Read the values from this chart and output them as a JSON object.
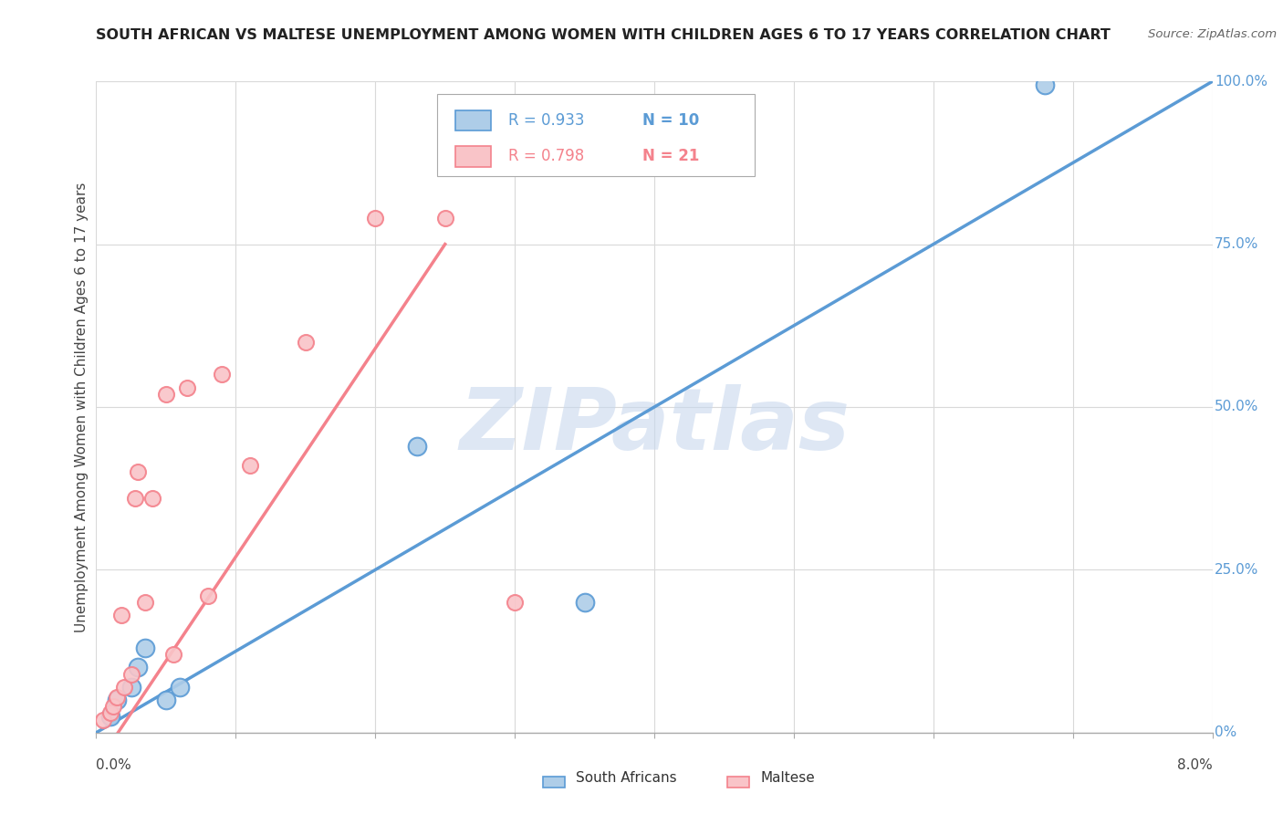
{
  "title": "SOUTH AFRICAN VS MALTESE UNEMPLOYMENT AMONG WOMEN WITH CHILDREN AGES 6 TO 17 YEARS CORRELATION CHART",
  "source": "Source: ZipAtlas.com",
  "ylabel": "Unemployment Among Women with Children Ages 6 to 17 years",
  "x_min": 0.0,
  "x_max": 8.0,
  "y_min": 0.0,
  "y_max": 100.0,
  "legend_entry1_r": "R = 0.933",
  "legend_entry1_n": "N = 10",
  "legend_entry2_r": "R = 0.798",
  "legend_entry2_n": "N = 21",
  "watermark": "ZIPatlas",
  "blue_color": "#5b9bd5",
  "blue_fill": "#aecde8",
  "pink_color": "#f4828c",
  "pink_fill": "#f9c4c8",
  "legend_label1": "South Africans",
  "legend_label2": "Maltese",
  "sa_points_x": [
    0.1,
    0.15,
    0.25,
    0.3,
    0.35,
    0.5,
    0.6,
    2.3,
    3.5,
    6.8
  ],
  "sa_points_y": [
    2.5,
    5.0,
    7.0,
    10.0,
    13.0,
    5.0,
    7.0,
    44.0,
    20.0,
    99.5
  ],
  "maltese_points_x": [
    0.05,
    0.1,
    0.12,
    0.15,
    0.18,
    0.2,
    0.25,
    0.28,
    0.3,
    0.35,
    0.4,
    0.5,
    0.55,
    0.65,
    0.8,
    0.9,
    1.1,
    1.5,
    2.0,
    2.5,
    3.0
  ],
  "maltese_points_y": [
    2.0,
    3.0,
    4.0,
    5.5,
    18.0,
    7.0,
    9.0,
    36.0,
    40.0,
    20.0,
    36.0,
    52.0,
    12.0,
    53.0,
    21.0,
    55.0,
    41.0,
    60.0,
    79.0,
    79.0,
    20.0
  ],
  "sa_line_x": [
    0.0,
    8.0
  ],
  "sa_line_y": [
    0.0,
    100.0
  ],
  "mt_line_x": [
    0.0,
    2.0
  ],
  "mt_line_y": [
    0.0,
    68.0
  ],
  "ref_line_x": [
    0.0,
    8.0
  ],
  "ref_line_y": [
    0.0,
    100.0
  ],
  "grid_color": "#d9d9d9",
  "bg_color": "#ffffff",
  "right_tick_labels": [
    "0%",
    "25.0%",
    "50.0%",
    "75.0%",
    "100.0%"
  ],
  "right_tick_vals": [
    0,
    25,
    50,
    75,
    100
  ]
}
